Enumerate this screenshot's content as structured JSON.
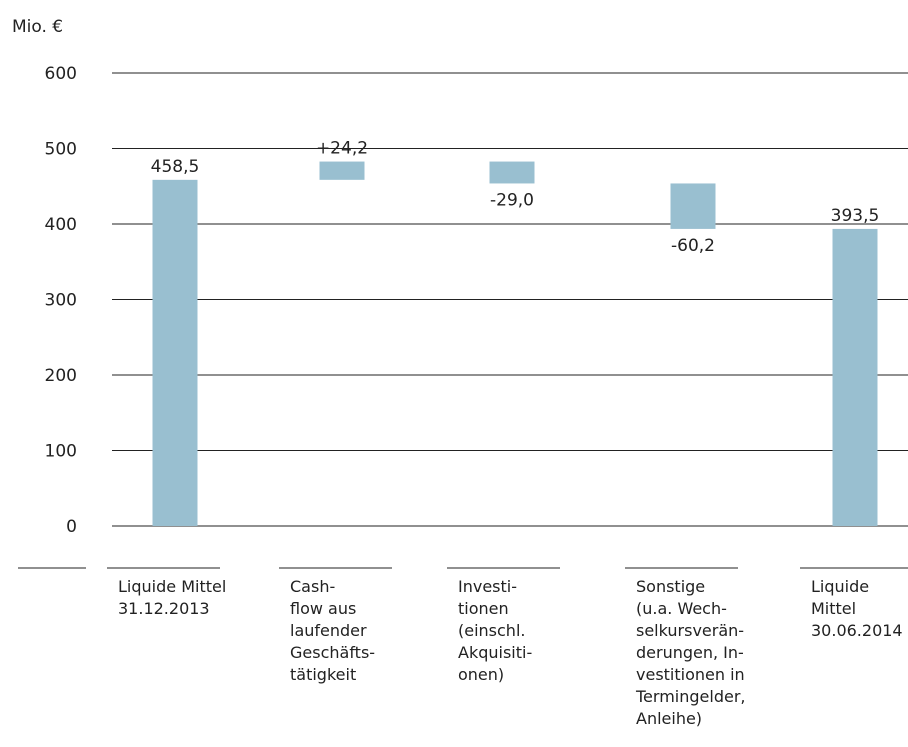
{
  "chart_data": {
    "type": "bar",
    "variant": "waterfall",
    "ylabel": "Mio. €",
    "ylim": [
      0,
      600
    ],
    "yticks": [
      "600",
      "500",
      "400",
      "300",
      "200",
      "100",
      "0"
    ],
    "grid": true,
    "bar_color": "#99bfd0",
    "categories": [
      [
        "Liquide Mittel",
        "31.12.2013"
      ],
      [
        "Cash-",
        "flow aus",
        "laufender",
        "Geschäfts-",
        "tätigkeit"
      ],
      [
        "Investi-",
        "tionen",
        "(einschl.",
        "Akquisiti-",
        "onen)"
      ],
      [
        "Sonstige",
        "(u.a. Wech-",
        "selkursverän-",
        "derungen, In-",
        "vestitionen in",
        "Termingelder,",
        "Anleihe)"
      ],
      [
        "Liquide",
        "Mittel",
        "30.06.2014"
      ]
    ],
    "bars": [
      {
        "start": 0,
        "end": 458.5,
        "label": "458,5"
      },
      {
        "start": 458.5,
        "end": 482.7,
        "label": "+24,2"
      },
      {
        "start": 482.7,
        "end": 453.7,
        "label": "-29,0"
      },
      {
        "start": 453.7,
        "end": 393.5,
        "label": "-60,2"
      },
      {
        "start": 0,
        "end": 393.5,
        "label": "393,5"
      }
    ]
  }
}
